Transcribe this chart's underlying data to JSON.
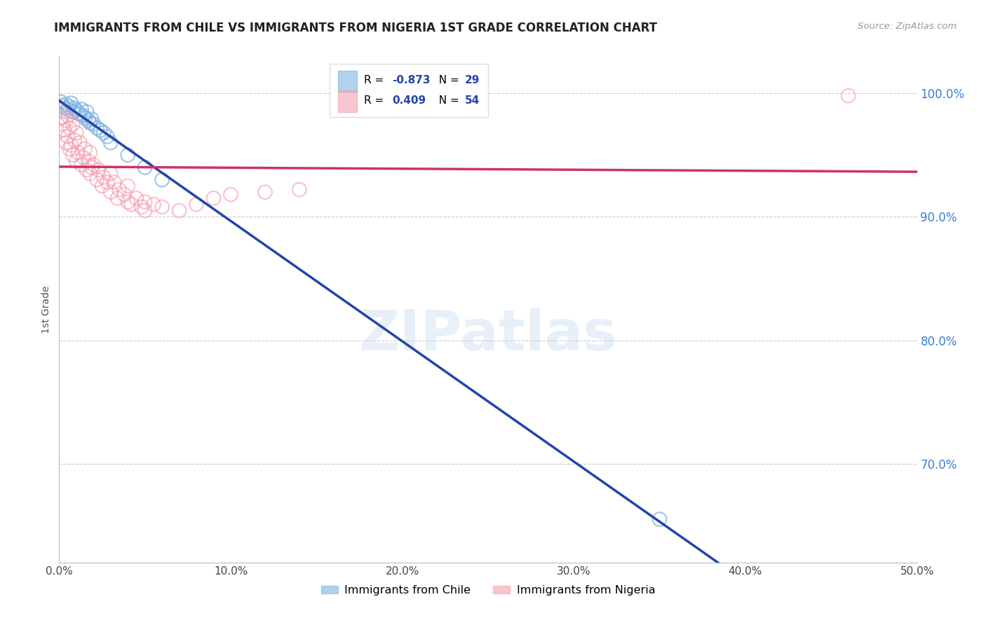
{
  "title": "IMMIGRANTS FROM CHILE VS IMMIGRANTS FROM NIGERIA 1ST GRADE CORRELATION CHART",
  "source": "Source: ZipAtlas.com",
  "ylabel": "1st Grade",
  "xlim": [
    0.0,
    0.5
  ],
  "ylim": [
    0.62,
    1.03
  ],
  "yticks": [
    0.7,
    0.8,
    0.9,
    1.0
  ],
  "ytick_labels": [
    "70.0%",
    "80.0%",
    "90.0%",
    "100.0%"
  ],
  "xticks": [
    0.0,
    0.1,
    0.2,
    0.3,
    0.4,
    0.5
  ],
  "xtick_labels": [
    "0.0%",
    "10.0%",
    "20.0%",
    "30.0%",
    "40.0%",
    "50.0%"
  ],
  "chile_R": -0.873,
  "chile_N": 29,
  "nigeria_R": 0.409,
  "nigeria_N": 54,
  "chile_color": "#7fb3e0",
  "nigeria_color": "#f4a0b0",
  "chile_line_color": "#2244aa",
  "nigeria_line_color": "#cc3366",
  "watermark": "ZIPatlas",
  "background_color": "#ffffff",
  "chile_x": [
    0.001,
    0.002,
    0.003,
    0.004,
    0.005,
    0.006,
    0.007,
    0.008,
    0.009,
    0.01,
    0.011,
    0.012,
    0.013,
    0.014,
    0.015,
    0.016,
    0.017,
    0.018,
    0.019,
    0.02,
    0.022,
    0.024,
    0.026,
    0.028,
    0.03,
    0.04,
    0.05,
    0.06,
    0.35
  ],
  "chile_y": [
    0.993,
    0.99,
    0.988,
    0.991,
    0.987,
    0.989,
    0.992,
    0.985,
    0.988,
    0.986,
    0.984,
    0.983,
    0.987,
    0.982,
    0.98,
    0.985,
    0.978,
    0.976,
    0.979,
    0.975,
    0.972,
    0.97,
    0.968,
    0.965,
    0.96,
    0.95,
    0.94,
    0.93,
    0.655
  ],
  "nigeria_x": [
    0.001,
    0.002,
    0.003,
    0.003,
    0.004,
    0.004,
    0.005,
    0.005,
    0.006,
    0.006,
    0.007,
    0.008,
    0.008,
    0.009,
    0.01,
    0.01,
    0.011,
    0.012,
    0.013,
    0.014,
    0.015,
    0.016,
    0.017,
    0.018,
    0.018,
    0.019,
    0.02,
    0.022,
    0.023,
    0.025,
    0.026,
    0.028,
    0.03,
    0.03,
    0.032,
    0.034,
    0.035,
    0.038,
    0.04,
    0.04,
    0.042,
    0.045,
    0.048,
    0.05,
    0.05,
    0.055,
    0.06,
    0.07,
    0.08,
    0.09,
    0.1,
    0.12,
    0.14,
    0.46
  ],
  "nigeria_y": [
    0.98,
    0.975,
    0.97,
    0.985,
    0.978,
    0.96,
    0.965,
    0.982,
    0.955,
    0.972,
    0.958,
    0.975,
    0.95,
    0.962,
    0.968,
    0.945,
    0.952,
    0.96,
    0.942,
    0.948,
    0.955,
    0.938,
    0.945,
    0.935,
    0.952,
    0.94,
    0.942,
    0.93,
    0.938,
    0.925,
    0.932,
    0.928,
    0.935,
    0.92,
    0.928,
    0.915,
    0.922,
    0.918,
    0.912,
    0.925,
    0.91,
    0.915,
    0.908,
    0.912,
    0.905,
    0.91,
    0.908,
    0.905,
    0.91,
    0.915,
    0.918,
    0.92,
    0.922,
    0.998
  ]
}
